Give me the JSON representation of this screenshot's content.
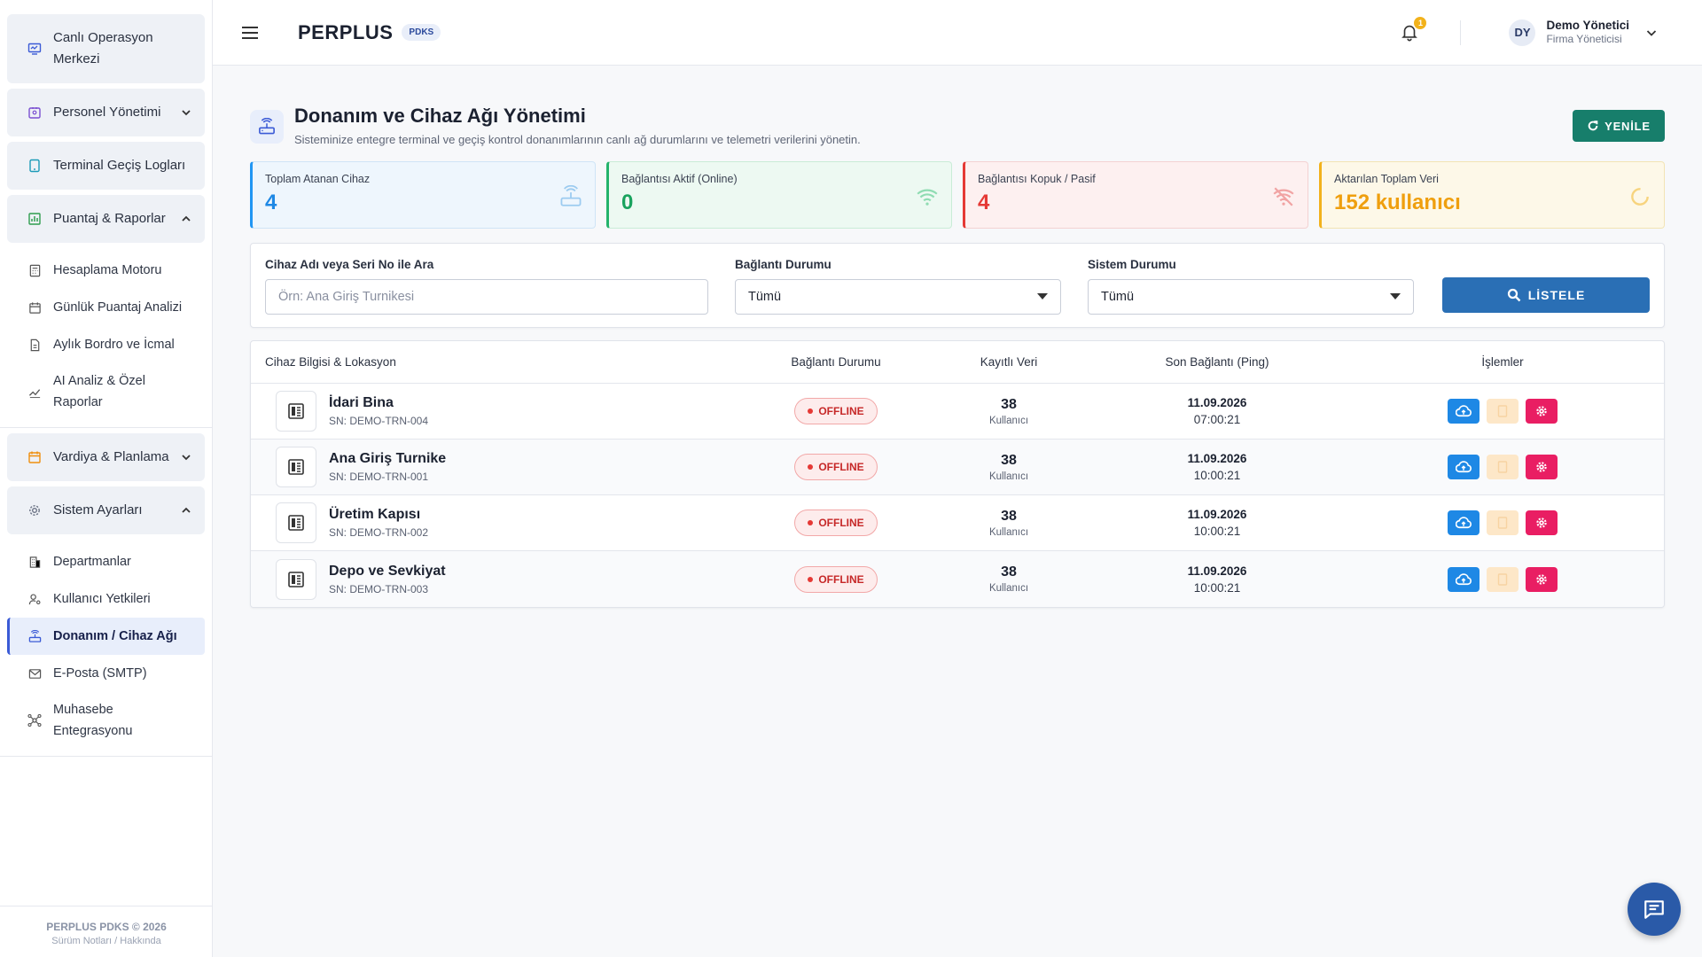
{
  "sidebar": {
    "groups": [
      {
        "label": "Canlı Operasyon Merkezi"
      },
      {
        "label": "Personel Yönetimi"
      },
      {
        "label": "Terminal Geçiş Logları"
      },
      {
        "label": "Puantaj & Raporlar"
      },
      {
        "label": "Vardiya & Planlama"
      },
      {
        "label": "Sistem Ayarları"
      }
    ],
    "reports": [
      {
        "label": "Hesaplama Motoru"
      },
      {
        "label": "Günlük Puantaj Analizi"
      },
      {
        "label": "Aylık Bordro ve İcmal"
      },
      {
        "label": "AI Analiz & Özel Raporlar"
      }
    ],
    "settings": [
      {
        "label": "Departmanlar"
      },
      {
        "label": "Kullanıcı Yetkileri"
      },
      {
        "label": "Donanım / Cihaz Ağı"
      },
      {
        "label": "E-Posta (SMTP)"
      },
      {
        "label": "Muhasebe Entegrasyonu"
      }
    ],
    "footer": {
      "line1": "PERPLUS PDKS © 2026",
      "line2": "Sürüm Notları / Hakkında"
    }
  },
  "header": {
    "brand": "PERPLUS",
    "badge": "PDKS",
    "notification_count": "1",
    "user": {
      "initials": "DY",
      "name": "Demo Yönetici",
      "role": "Firma Yöneticisi"
    }
  },
  "page": {
    "title": "Donanım ve Cihaz Ağı Yönetimi",
    "subtitle": "Sisteminize entegre terminal ve geçiş kontrol donanımlarının canlı ağ durumlarını ve telemetri verilerini yönetin.",
    "refresh_label": "YENİLE"
  },
  "stats": [
    {
      "label": "Toplam Atanan Cihaz",
      "value": "4"
    },
    {
      "label": "Bağlantısı Aktif (Online)",
      "value": "0"
    },
    {
      "label": "Bağlantısı Kopuk / Pasif",
      "value": "4"
    },
    {
      "label": "Aktarılan Toplam Veri",
      "value": "152 kullanıcı"
    }
  ],
  "filters": {
    "search": {
      "label": "Cihaz Adı veya Seri No ile Ara",
      "placeholder": "Örn: Ana Giriş Turnikesi"
    },
    "connection": {
      "label": "Bağlantı Durumu",
      "value": "Tümü"
    },
    "system": {
      "label": "Sistem Durumu",
      "value": "Tümü"
    },
    "list_label": "LİSTELE"
  },
  "table": {
    "headers": [
      "Cihaz Bilgisi & Lokasyon",
      "Bağlantı Durumu",
      "Kayıtlı Veri",
      "Son Bağlantı (Ping)",
      "İşlemler"
    ],
    "rows": [
      {
        "name": "İdari Bina",
        "sn": "SN: DEMO-TRN-004",
        "status": "OFFLINE",
        "count": "38",
        "count_label": "Kullanıcı",
        "date": "11.09.2026",
        "time": "07:00:21"
      },
      {
        "name": "Ana Giriş Turnike",
        "sn": "SN: DEMO-TRN-001",
        "status": "OFFLINE",
        "count": "38",
        "count_label": "Kullanıcı",
        "date": "11.09.2026",
        "time": "10:00:21"
      },
      {
        "name": "Üretim Kapısı",
        "sn": "SN: DEMO-TRN-002",
        "status": "OFFLINE",
        "count": "38",
        "count_label": "Kullanıcı",
        "date": "11.09.2026",
        "time": "10:00:21"
      },
      {
        "name": "Depo ve Sevkiyat",
        "sn": "SN: DEMO-TRN-003",
        "status": "OFFLINE",
        "count": "38",
        "count_label": "Kullanıcı",
        "date": "11.09.2026",
        "time": "10:00:21"
      }
    ]
  },
  "colors": {
    "accent": "#3b5bd6",
    "primary_button": "#2a6fb5",
    "refresh_button": "#177e6b",
    "offline": "#e53935"
  }
}
